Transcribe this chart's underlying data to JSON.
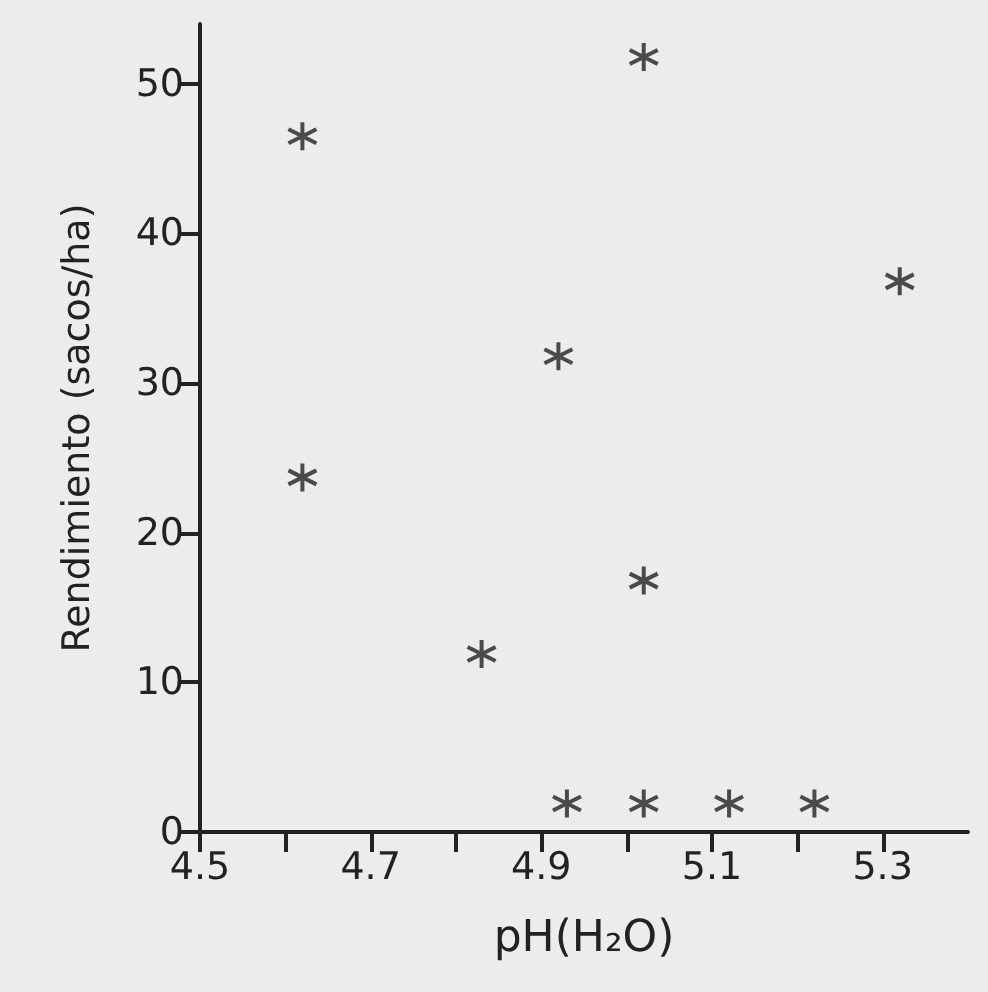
{
  "chart_data": {
    "type": "scatter",
    "xlabel": "pH(H₂O)",
    "ylabel": "Rendimiento (sacos/ha)",
    "x": [
      4.62,
      4.62,
      4.83,
      4.92,
      5.02,
      5.02,
      4.93,
      5.02,
      5.12,
      5.22,
      5.32
    ],
    "series": [
      {
        "color": "#222222",
        "values": [
          46.5,
          23.7,
          11.9,
          31.8,
          51.8,
          16.8,
          1.9,
          1.9,
          1.9,
          1.9,
          36.8
        ]
      }
    ],
    "xlim": [
      4.5,
      5.4
    ],
    "ylim": [
      0,
      54
    ],
    "xticks": [
      4.5,
      {
        "value": 4.6,
        "label": null
      },
      4.7,
      {
        "value": 4.8,
        "label": null
      },
      4.9,
      {
        "value": 5.0,
        "label": null
      },
      5.1,
      {
        "value": 5.2,
        "label": null
      },
      5.3
    ],
    "yticks": [
      0,
      10,
      20,
      30,
      40,
      50
    ],
    "grid": false,
    "marker": "cross"
  }
}
